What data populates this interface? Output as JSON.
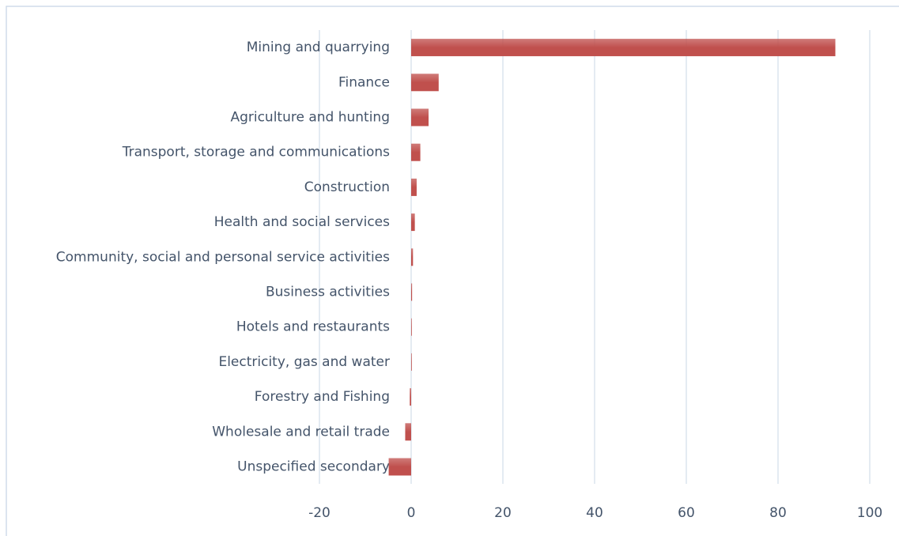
{
  "chart_data": {
    "type": "barh",
    "categories": [
      "Mining and quarrying",
      "Finance",
      "Agriculture and hunting",
      "Transport, storage and communications",
      "Construction",
      "Health and social services",
      "Community, social and personal service activities",
      "Business activities",
      "Hotels and restaurants",
      "Electricity, gas and water",
      "Forestry and Fishing",
      "Wholesale and retail trade",
      "Unspecified secondary"
    ],
    "values": [
      92.5,
      6,
      3.8,
      2,
      1.2,
      0.8,
      0.4,
      0.2,
      0.1,
      0.1,
      -0.3,
      -1.3,
      -4.9
    ],
    "color": "#c0504d",
    "xlim": [
      -20,
      100
    ],
    "xticks": [
      -20,
      0,
      20,
      40,
      60,
      80,
      100
    ],
    "grid": true
  }
}
